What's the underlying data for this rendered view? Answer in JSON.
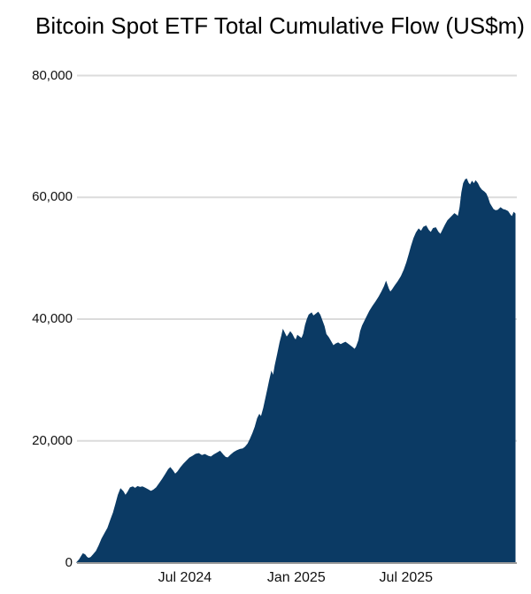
{
  "page": {
    "background": "#ffffff"
  },
  "header": {
    "title": "Bitcoin Spot ETF Total Cumulative Flow (US$m)"
  },
  "chart_data": {
    "type": "area",
    "title": "Bitcoin Spot ETF Total Cumulative Flow (US$m)",
    "unit": "US$m",
    "legend": "none",
    "grid": "horizontal",
    "ylim": [
      0,
      80000
    ],
    "y_ticks": [
      {
        "value": 0,
        "label": "0"
      },
      {
        "value": 20000,
        "label": "20,000"
      },
      {
        "value": 40000,
        "label": "40,000"
      },
      {
        "value": 60000,
        "label": "60,000"
      },
      {
        "value": 80000,
        "label": "80,000"
      }
    ],
    "x_ticks": [
      {
        "date": "2024-07-01",
        "label": "Jul 2024"
      },
      {
        "date": "2025-01-01",
        "label": "Jan 2025"
      },
      {
        "date": "2025-07-01",
        "label": "Jul 2025"
      }
    ],
    "x_range": [
      "2024-01-05",
      "2025-12-28"
    ],
    "colors": {
      "area_fill": "#0B3A64",
      "gridline": "#DBDBDB",
      "axis_line": "#9B9B9B",
      "text": "#111111",
      "title_text": "#000000"
    },
    "series": [
      {
        "name": "Total Cumulative Flow",
        "points": [
          [
            "2024-01-05",
            60
          ],
          [
            "2024-01-09",
            500
          ],
          [
            "2024-01-12",
            1000
          ],
          [
            "2024-01-15",
            1450
          ],
          [
            "2024-01-18",
            1300
          ],
          [
            "2024-01-21",
            900
          ],
          [
            "2024-01-24",
            700
          ],
          [
            "2024-01-28",
            850
          ],
          [
            "2024-02-01",
            1300
          ],
          [
            "2024-02-06",
            1900
          ],
          [
            "2024-02-10",
            2700
          ],
          [
            "2024-02-15",
            3900
          ],
          [
            "2024-02-20",
            4800
          ],
          [
            "2024-02-25",
            5700
          ],
          [
            "2024-03-01",
            7100
          ],
          [
            "2024-03-05",
            8200
          ],
          [
            "2024-03-09",
            9600
          ],
          [
            "2024-03-13",
            11100
          ],
          [
            "2024-03-17",
            12100
          ],
          [
            "2024-03-21",
            11700
          ],
          [
            "2024-03-25",
            11000
          ],
          [
            "2024-03-29",
            11600
          ],
          [
            "2024-04-02",
            12300
          ],
          [
            "2024-04-06",
            12450
          ],
          [
            "2024-04-10",
            12200
          ],
          [
            "2024-04-14",
            12500
          ],
          [
            "2024-04-18",
            12350
          ],
          [
            "2024-04-22",
            12450
          ],
          [
            "2024-04-26",
            12250
          ],
          [
            "2024-05-01",
            12000
          ],
          [
            "2024-05-06",
            11700
          ],
          [
            "2024-05-10",
            11900
          ],
          [
            "2024-05-15",
            12300
          ],
          [
            "2024-05-20",
            13000
          ],
          [
            "2024-05-25",
            13700
          ],
          [
            "2024-05-30",
            14500
          ],
          [
            "2024-06-04",
            15300
          ],
          [
            "2024-06-07",
            15600
          ],
          [
            "2024-06-11",
            15100
          ],
          [
            "2024-06-15",
            14500
          ],
          [
            "2024-06-19",
            14900
          ],
          [
            "2024-06-24",
            15600
          ],
          [
            "2024-06-29",
            16200
          ],
          [
            "2024-07-04",
            16700
          ],
          [
            "2024-07-09",
            17200
          ],
          [
            "2024-07-14",
            17500
          ],
          [
            "2024-07-19",
            17800
          ],
          [
            "2024-07-24",
            17900
          ],
          [
            "2024-07-29",
            17600
          ],
          [
            "2024-08-03",
            17750
          ],
          [
            "2024-08-08",
            17500
          ],
          [
            "2024-08-13",
            17350
          ],
          [
            "2024-08-18",
            17700
          ],
          [
            "2024-08-23",
            18000
          ],
          [
            "2024-08-28",
            18300
          ],
          [
            "2024-09-02",
            17700
          ],
          [
            "2024-09-06",
            17300
          ],
          [
            "2024-09-10",
            17200
          ],
          [
            "2024-09-15",
            17700
          ],
          [
            "2024-09-20",
            18100
          ],
          [
            "2024-09-25",
            18400
          ],
          [
            "2024-09-30",
            18600
          ],
          [
            "2024-10-05",
            18700
          ],
          [
            "2024-10-09",
            19000
          ],
          [
            "2024-10-13",
            19500
          ],
          [
            "2024-10-17",
            20300
          ],
          [
            "2024-10-21",
            21200
          ],
          [
            "2024-10-25",
            22300
          ],
          [
            "2024-10-29",
            23700
          ],
          [
            "2024-11-01",
            24300
          ],
          [
            "2024-11-04",
            23900
          ],
          [
            "2024-11-08",
            25400
          ],
          [
            "2024-11-12",
            27200
          ],
          [
            "2024-11-15",
            28600
          ],
          [
            "2024-11-18",
            30000
          ],
          [
            "2024-11-21",
            31300
          ],
          [
            "2024-11-24",
            30600
          ],
          [
            "2024-11-27",
            32400
          ],
          [
            "2024-12-01",
            34200
          ],
          [
            "2024-12-05",
            36200
          ],
          [
            "2024-12-08",
            37300
          ],
          [
            "2024-12-10",
            38200
          ],
          [
            "2024-12-13",
            37600
          ],
          [
            "2024-12-16",
            37000
          ],
          [
            "2024-12-19",
            37400
          ],
          [
            "2024-12-22",
            37900
          ],
          [
            "2024-12-25",
            37500
          ],
          [
            "2024-12-28",
            36900
          ],
          [
            "2024-12-31",
            36500
          ],
          [
            "2025-01-03",
            37300
          ],
          [
            "2025-01-07",
            37000
          ],
          [
            "2025-01-10",
            36800
          ],
          [
            "2025-01-13",
            37600
          ],
          [
            "2025-01-16",
            39000
          ],
          [
            "2025-01-19",
            40000
          ],
          [
            "2025-01-22",
            40700
          ],
          [
            "2025-01-26",
            41000
          ],
          [
            "2025-01-29",
            40500
          ],
          [
            "2025-02-02",
            40800
          ],
          [
            "2025-02-06",
            41100
          ],
          [
            "2025-02-09",
            40700
          ],
          [
            "2025-02-13",
            39600
          ],
          [
            "2025-02-16",
            38800
          ],
          [
            "2025-02-19",
            37500
          ],
          [
            "2025-02-23",
            37000
          ],
          [
            "2025-02-27",
            36300
          ],
          [
            "2025-03-03",
            35600
          ],
          [
            "2025-03-07",
            35900
          ],
          [
            "2025-03-11",
            36100
          ],
          [
            "2025-03-15",
            35800
          ],
          [
            "2025-03-19",
            36000
          ],
          [
            "2025-03-23",
            36200
          ],
          [
            "2025-03-27",
            35900
          ],
          [
            "2025-03-31",
            35600
          ],
          [
            "2025-04-04",
            35300
          ],
          [
            "2025-04-07",
            35000
          ],
          [
            "2025-04-10",
            35400
          ],
          [
            "2025-04-14",
            36500
          ],
          [
            "2025-04-17",
            38000
          ],
          [
            "2025-04-20",
            38900
          ],
          [
            "2025-04-24",
            39700
          ],
          [
            "2025-04-28",
            40500
          ],
          [
            "2025-05-02",
            41300
          ],
          [
            "2025-05-07",
            42100
          ],
          [
            "2025-05-12",
            42800
          ],
          [
            "2025-05-17",
            43600
          ],
          [
            "2025-05-22",
            44500
          ],
          [
            "2025-05-26",
            45300
          ],
          [
            "2025-05-29",
            46100
          ],
          [
            "2025-06-02",
            45000
          ],
          [
            "2025-06-05",
            44400
          ],
          [
            "2025-06-09",
            44900
          ],
          [
            "2025-06-13",
            45500
          ],
          [
            "2025-06-18",
            46200
          ],
          [
            "2025-06-23",
            47000
          ],
          [
            "2025-06-28",
            48100
          ],
          [
            "2025-07-02",
            49200
          ],
          [
            "2025-07-06",
            50600
          ],
          [
            "2025-07-10",
            52000
          ],
          [
            "2025-07-14",
            53300
          ],
          [
            "2025-07-18",
            54200
          ],
          [
            "2025-07-22",
            54800
          ],
          [
            "2025-07-26",
            54400
          ],
          [
            "2025-07-30",
            55100
          ],
          [
            "2025-08-03",
            55300
          ],
          [
            "2025-08-07",
            54600
          ],
          [
            "2025-08-11",
            54200
          ],
          [
            "2025-08-15",
            54900
          ],
          [
            "2025-08-19",
            55000
          ],
          [
            "2025-08-23",
            54300
          ],
          [
            "2025-08-27",
            53900
          ],
          [
            "2025-08-31",
            54700
          ],
          [
            "2025-09-04",
            55500
          ],
          [
            "2025-09-08",
            56200
          ],
          [
            "2025-09-12",
            56600
          ],
          [
            "2025-09-16",
            57000
          ],
          [
            "2025-09-19",
            57300
          ],
          [
            "2025-09-22",
            57100
          ],
          [
            "2025-09-25",
            56800
          ],
          [
            "2025-09-28",
            58300
          ],
          [
            "2025-10-01",
            60800
          ],
          [
            "2025-10-04",
            62300
          ],
          [
            "2025-10-07",
            62900
          ],
          [
            "2025-10-09",
            63000
          ],
          [
            "2025-10-12",
            62300
          ],
          [
            "2025-10-15",
            62000
          ],
          [
            "2025-10-18",
            62600
          ],
          [
            "2025-10-21",
            62200
          ],
          [
            "2025-10-24",
            62700
          ],
          [
            "2025-10-27",
            62300
          ],
          [
            "2025-10-30",
            61700
          ],
          [
            "2025-11-03",
            61200
          ],
          [
            "2025-11-07",
            60900
          ],
          [
            "2025-11-10",
            60600
          ],
          [
            "2025-11-13",
            59900
          ],
          [
            "2025-11-16",
            59000
          ],
          [
            "2025-11-19",
            58500
          ],
          [
            "2025-11-22",
            58000
          ],
          [
            "2025-11-26",
            57800
          ],
          [
            "2025-11-30",
            57900
          ],
          [
            "2025-12-04",
            58300
          ],
          [
            "2025-12-08",
            58000
          ],
          [
            "2025-12-12",
            57900
          ],
          [
            "2025-12-16",
            57700
          ],
          [
            "2025-12-20",
            57100
          ],
          [
            "2025-12-23",
            56800
          ],
          [
            "2025-12-26",
            57500
          ],
          [
            "2025-12-28",
            57300
          ]
        ]
      }
    ]
  }
}
